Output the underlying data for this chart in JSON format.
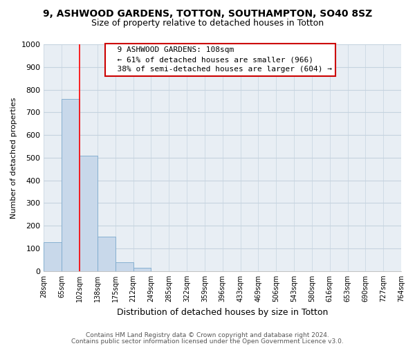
{
  "title": "9, ASHWOOD GARDENS, TOTTON, SOUTHAMPTON, SO40 8SZ",
  "subtitle": "Size of property relative to detached houses in Totton",
  "xlabel": "Distribution of detached houses by size in Totton",
  "ylabel": "Number of detached properties",
  "bar_values": [
    128,
    760,
    510,
    152,
    40,
    15,
    0,
    0,
    0,
    0,
    0,
    0,
    0,
    0,
    0,
    0,
    0,
    0,
    0,
    0
  ],
  "bar_color": "#c8d8ea",
  "bar_edge_color": "#7aa8cc",
  "x_labels": [
    "28sqm",
    "65sqm",
    "102sqm",
    "138sqm",
    "175sqm",
    "212sqm",
    "249sqm",
    "285sqm",
    "322sqm",
    "359sqm",
    "396sqm",
    "433sqm",
    "469sqm",
    "506sqm",
    "543sqm",
    "580sqm",
    "616sqm",
    "653sqm",
    "690sqm",
    "727sqm",
    "764sqm"
  ],
  "ylim": [
    0,
    1000
  ],
  "yticks": [
    0,
    100,
    200,
    300,
    400,
    500,
    600,
    700,
    800,
    900,
    1000
  ],
  "red_line_x": 2.0,
  "annotation_title": "9 ASHWOOD GARDENS: 108sqm",
  "annotation_line1": "← 61% of detached houses are smaller (966)",
  "annotation_line2": "38% of semi-detached houses are larger (604) →",
  "annotation_box_facecolor": "#ffffff",
  "annotation_box_edgecolor": "#cc0000",
  "footer_line1": "Contains HM Land Registry data © Crown copyright and database right 2024.",
  "footer_line2": "Contains public sector information licensed under the Open Government Licence v3.0.",
  "fig_background_color": "#ffffff",
  "plot_background_color": "#e8eef4",
  "grid_color": "#c5d3df",
  "title_fontsize": 10,
  "subtitle_fontsize": 9,
  "ylabel_fontsize": 8,
  "xlabel_fontsize": 9,
  "tick_fontsize": 8,
  "xtick_fontsize": 7
}
